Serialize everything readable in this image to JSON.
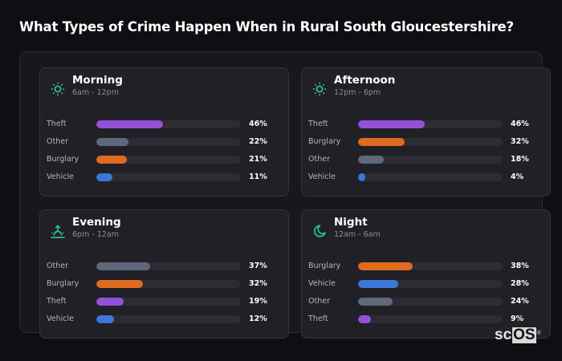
{
  "title": "What Types of Crime Happen When in Rural South Gloucestershire?",
  "colors": {
    "Theft": "#9650d8",
    "Other": "#5f697a",
    "Burglary": "#e06a1e",
    "Vehicle": "#3b78d8",
    "icon_accent": "#2fbf95",
    "track": "#2c2c32"
  },
  "cards": [
    {
      "name": "Morning",
      "range": "6am - 12pm",
      "icon": "sun-icon",
      "rows": [
        {
          "label": "Theft",
          "value": 46,
          "pct": "46%"
        },
        {
          "label": "Other",
          "value": 22,
          "pct": "22%"
        },
        {
          "label": "Burglary",
          "value": 21,
          "pct": "21%"
        },
        {
          "label": "Vehicle",
          "value": 11,
          "pct": "11%"
        }
      ]
    },
    {
      "name": "Afternoon",
      "range": "12pm - 6pm",
      "icon": "sun-icon",
      "rows": [
        {
          "label": "Theft",
          "value": 46,
          "pct": "46%"
        },
        {
          "label": "Burglary",
          "value": 32,
          "pct": "32%"
        },
        {
          "label": "Other",
          "value": 18,
          "pct": "18%"
        },
        {
          "label": "Vehicle",
          "value": 4,
          "pct": "4%"
        }
      ]
    },
    {
      "name": "Evening",
      "range": "6pm - 12am",
      "icon": "sunset-icon",
      "rows": [
        {
          "label": "Other",
          "value": 37,
          "pct": "37%"
        },
        {
          "label": "Burglary",
          "value": 32,
          "pct": "32%"
        },
        {
          "label": "Theft",
          "value": 19,
          "pct": "19%"
        },
        {
          "label": "Vehicle",
          "value": 12,
          "pct": "12%"
        }
      ]
    },
    {
      "name": "Night",
      "range": "12am - 6am",
      "icon": "moon-icon",
      "rows": [
        {
          "label": "Burglary",
          "value": 38,
          "pct": "38%"
        },
        {
          "label": "Vehicle",
          "value": 28,
          "pct": "28%"
        },
        {
          "label": "Other",
          "value": 24,
          "pct": "24%"
        },
        {
          "label": "Theft",
          "value": 9,
          "pct": "9%"
        }
      ]
    }
  ],
  "logo": {
    "sc": "sc",
    "os": "OS",
    "reg": "®"
  },
  "chart_data": [
    {
      "type": "bar",
      "orientation": "horizontal",
      "title": "Morning (6am - 12pm)",
      "categories": [
        "Theft",
        "Other",
        "Burglary",
        "Vehicle"
      ],
      "values": [
        46,
        22,
        21,
        11
      ],
      "unit": "%",
      "xlim": [
        0,
        100
      ]
    },
    {
      "type": "bar",
      "orientation": "horizontal",
      "title": "Afternoon (12pm - 6pm)",
      "categories": [
        "Theft",
        "Burglary",
        "Other",
        "Vehicle"
      ],
      "values": [
        46,
        32,
        18,
        4
      ],
      "unit": "%",
      "xlim": [
        0,
        100
      ]
    },
    {
      "type": "bar",
      "orientation": "horizontal",
      "title": "Evening (6pm - 12am)",
      "categories": [
        "Other",
        "Burglary",
        "Theft",
        "Vehicle"
      ],
      "values": [
        37,
        32,
        19,
        12
      ],
      "unit": "%",
      "xlim": [
        0,
        100
      ]
    },
    {
      "type": "bar",
      "orientation": "horizontal",
      "title": "Night (12am - 6am)",
      "categories": [
        "Burglary",
        "Vehicle",
        "Other",
        "Theft"
      ],
      "values": [
        38,
        28,
        24,
        9
      ],
      "unit": "%",
      "xlim": [
        0,
        100
      ]
    }
  ]
}
